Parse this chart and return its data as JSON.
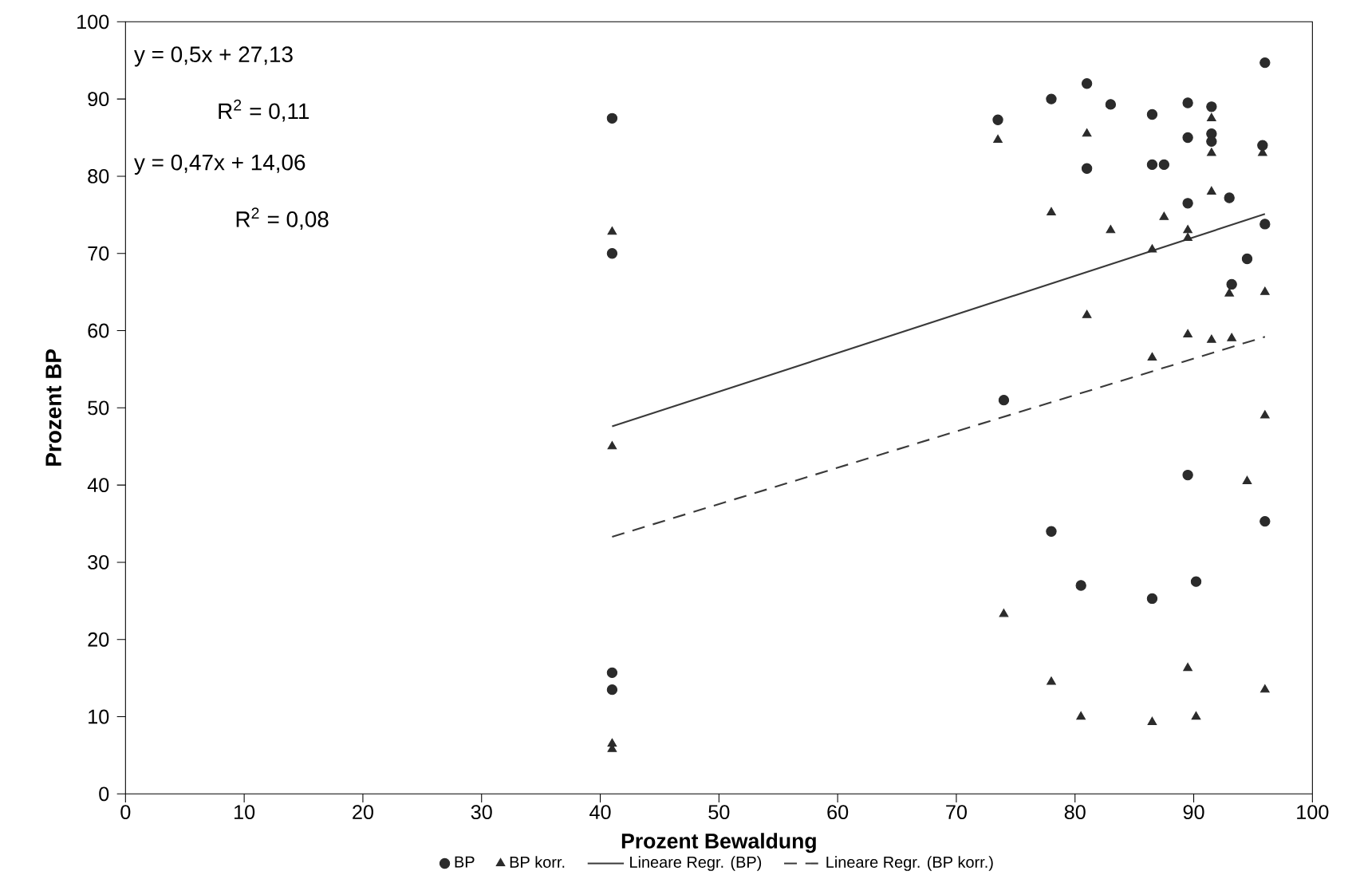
{
  "chart_data": {
    "type": "scatter",
    "xlabel": "Prozent Bewaldung",
    "ylabel": "Prozent BP",
    "xlim": [
      0,
      100
    ],
    "ylim": [
      0,
      100
    ],
    "xticks": [
      0,
      10,
      20,
      30,
      40,
      50,
      60,
      70,
      80,
      90,
      100
    ],
    "yticks": [
      0,
      10,
      20,
      30,
      40,
      50,
      60,
      70,
      80,
      90,
      100
    ],
    "grid": false,
    "legend": "bottom",
    "annotations": [
      "y = 0,5x + 27,13",
      "R$^{2}$ = 0,11",
      "y = 0,47x + 14,06",
      "R$^{2}$ = 0,08"
    ],
    "series": [
      {
        "name": "BP",
        "marker": "circle",
        "color": "#2b2b2b",
        "x": [
          41,
          41,
          41,
          41,
          73.5,
          74,
          78,
          78,
          80.5,
          81,
          81,
          83,
          86.5,
          86.5,
          87.5,
          86.5,
          89.5,
          89.5,
          89.5,
          89.5,
          90.2,
          91.5,
          91.5,
          91.5,
          93,
          93.2,
          94.5,
          96,
          95.8,
          96,
          96
        ],
        "values": [
          87.5,
          70,
          15.7,
          13.5,
          87.3,
          51,
          90,
          34,
          27,
          92,
          81,
          89.3,
          88,
          81.5,
          81.5,
          25.3,
          89.5,
          85,
          76.5,
          41.3,
          27.5,
          89,
          85.5,
          84.5,
          77.2,
          66,
          69.3,
          94.7,
          84,
          73.8,
          35.3
        ]
      },
      {
        "name": "BP korr.",
        "marker": "triangle",
        "color": "#2b2b2b",
        "x": [
          41,
          41,
          41,
          41,
          73.5,
          74,
          78,
          78,
          80.5,
          81,
          81,
          83,
          86.5,
          86.5,
          86.5,
          87.5,
          89.5,
          89.5,
          89.5,
          89.5,
          90.2,
          91.5,
          91.5,
          91.5,
          91.5,
          93.2,
          93,
          94.5,
          95.8,
          96,
          96,
          96
        ],
        "values": [
          72.8,
          45,
          6.5,
          5.8,
          84.7,
          23.3,
          75.3,
          14.5,
          10,
          85.5,
          62,
          73,
          70.5,
          56.5,
          9.3,
          74.7,
          73,
          72,
          59.5,
          16.3,
          10,
          87.5,
          83,
          78,
          58.8,
          59,
          64.8,
          40.5,
          83,
          65,
          49,
          13.5
        ]
      },
      {
        "name": "Lineare Regr. (BP)",
        "type": "line",
        "marker": "none",
        "line_style": "solid",
        "color": "#3a3a3a",
        "x": [
          41,
          96
        ],
        "values": [
          47.6,
          75.1
        ]
      },
      {
        "name": "Lineare Regr. (BP korr.)",
        "type": "line",
        "marker": "none",
        "line_style": "dashed",
        "color": "#3a3a3a",
        "x": [
          41,
          96
        ],
        "values": [
          33.3,
          59.2
        ]
      }
    ]
  }
}
